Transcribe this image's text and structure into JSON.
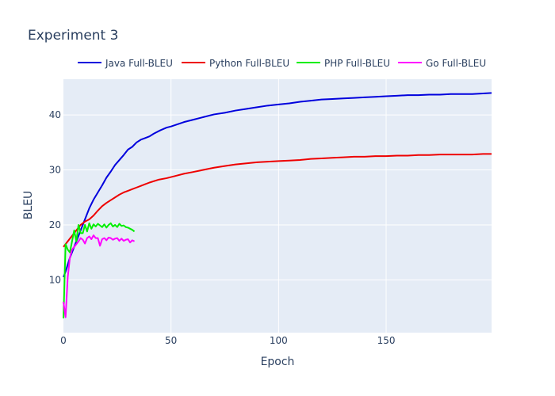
{
  "chart_data": {
    "type": "line",
    "title": "Experiment 3",
    "xlabel": "Epoch",
    "ylabel": "BLEU",
    "xlim": [
      0,
      199
    ],
    "ylim": [
      0.4,
      46.5
    ],
    "xticks": [
      0,
      50,
      100,
      150
    ],
    "yticks": [
      10,
      20,
      30,
      40
    ],
    "grid": true,
    "legend_position": "top",
    "plot_background": "#e5ecf6",
    "series": [
      {
        "name": "Java Full-BLEU",
        "color": "#0000dd",
        "x": [
          0,
          1,
          2,
          3,
          4,
          5,
          6,
          7,
          8,
          9,
          10,
          12,
          14,
          16,
          18,
          20,
          22,
          24,
          26,
          28,
          30,
          32,
          34,
          36,
          38,
          40,
          42,
          45,
          48,
          50,
          53,
          56,
          60,
          65,
          70,
          75,
          80,
          85,
          90,
          95,
          100,
          105,
          110,
          115,
          120,
          125,
          130,
          135,
          140,
          145,
          150,
          155,
          160,
          165,
          170,
          175,
          180,
          185,
          190,
          195,
          199
        ],
        "y": [
          10.5,
          11.5,
          12.8,
          14.0,
          15.0,
          16.0,
          17.0,
          18.0,
          19.0,
          20.0,
          21.0,
          23.0,
          24.6,
          25.9,
          27.2,
          28.6,
          29.7,
          30.9,
          31.8,
          32.7,
          33.7,
          34.2,
          35.0,
          35.5,
          35.8,
          36.1,
          36.6,
          37.2,
          37.7,
          37.9,
          38.3,
          38.7,
          39.1,
          39.6,
          40.1,
          40.4,
          40.8,
          41.1,
          41.4,
          41.7,
          41.9,
          42.1,
          42.4,
          42.6,
          42.8,
          42.9,
          43.0,
          43.1,
          43.2,
          43.3,
          43.4,
          43.5,
          43.6,
          43.6,
          43.7,
          43.7,
          43.8,
          43.8,
          43.8,
          43.9,
          44.0
        ]
      },
      {
        "name": "Python Full-BLEU",
        "color": "#ee0000",
        "x": [
          0,
          1,
          2,
          3,
          4,
          5,
          6,
          7,
          8,
          9,
          10,
          12,
          14,
          16,
          18,
          20,
          22,
          24,
          26,
          28,
          30,
          32,
          34,
          36,
          38,
          40,
          44,
          48,
          52,
          56,
          60,
          65,
          70,
          75,
          80,
          85,
          90,
          95,
          100,
          105,
          110,
          115,
          120,
          125,
          130,
          135,
          140,
          145,
          150,
          155,
          160,
          165,
          170,
          175,
          180,
          185,
          190,
          195,
          199
        ],
        "y": [
          16.0,
          16.5,
          17.0,
          17.5,
          18.0,
          18.5,
          19.0,
          19.5,
          20.0,
          20.3,
          20.6,
          21.0,
          21.7,
          22.6,
          23.4,
          24.0,
          24.5,
          25.0,
          25.5,
          25.9,
          26.2,
          26.5,
          26.8,
          27.1,
          27.4,
          27.7,
          28.2,
          28.5,
          28.9,
          29.3,
          29.6,
          30.0,
          30.4,
          30.7,
          31.0,
          31.2,
          31.4,
          31.5,
          31.6,
          31.7,
          31.8,
          32.0,
          32.1,
          32.2,
          32.3,
          32.4,
          32.4,
          32.5,
          32.5,
          32.6,
          32.6,
          32.7,
          32.7,
          32.8,
          32.8,
          32.8,
          32.8,
          32.9,
          32.9
        ]
      },
      {
        "name": "PHP Full-BLEU",
        "color": "#00ee00",
        "x": [
          0,
          1,
          2,
          3,
          4,
          5,
          6,
          7,
          8,
          9,
          10,
          11,
          12,
          13,
          14,
          15,
          16,
          17,
          18,
          19,
          20,
          21,
          22,
          23,
          24,
          25,
          26,
          27,
          28,
          29,
          30,
          31,
          32,
          33
        ],
        "y": [
          3.0,
          16.5,
          15.5,
          15.0,
          17.0,
          19.0,
          17.0,
          20.0,
          18.5,
          18.5,
          20.0,
          18.8,
          20.3,
          19.3,
          20.1,
          19.7,
          20.2,
          19.9,
          19.6,
          20.1,
          19.5,
          20.0,
          20.3,
          19.7,
          20.0,
          19.6,
          20.2,
          19.8,
          19.9,
          19.6,
          19.5,
          19.3,
          19.1,
          18.8
        ]
      },
      {
        "name": "Go Full-BLEU",
        "color": "#ff00ff",
        "x": [
          0,
          1,
          2,
          3,
          4,
          5,
          6,
          7,
          8,
          9,
          10,
          11,
          12,
          13,
          14,
          15,
          16,
          17,
          18,
          19,
          20,
          21,
          22,
          23,
          24,
          25,
          26,
          27,
          28,
          29,
          30,
          31,
          32,
          33
        ],
        "y": [
          6.0,
          3.2,
          10.5,
          14.0,
          15.5,
          16.0,
          16.5,
          17.0,
          17.6,
          17.3,
          16.6,
          17.6,
          17.9,
          17.4,
          18.1,
          17.6,
          17.6,
          16.2,
          17.4,
          17.6,
          17.2,
          17.7,
          17.6,
          17.3,
          17.5,
          17.6,
          17.1,
          17.5,
          17.1,
          17.3,
          17.4,
          16.8,
          17.2,
          17.0
        ]
      }
    ]
  }
}
